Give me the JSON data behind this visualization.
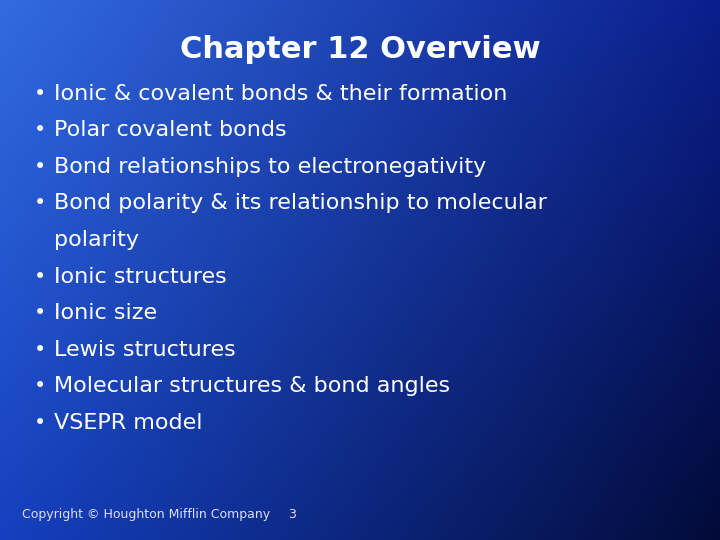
{
  "title": "Chapter 12 Overview",
  "title_color": "#FFFFFF",
  "title_fontsize": 22,
  "bullet_items": [
    "Ionic & covalent bonds & their formation",
    "Polar covalent bonds",
    "Bond relationships to electronegativity",
    "Bond polarity & its relationship to molecular\npolarity",
    "Ionic structures",
    "Ionic size",
    "Lewis structures",
    "Molecular structures & bond angles",
    "VSEPR model"
  ],
  "bullet_color": "#FFFFFF",
  "bullet_fontsize": 16,
  "bullet_symbol": "•",
  "copyright_text": "Copyright © Houghton Mifflin Company",
  "page_number": "3",
  "footer_fontsize": 9,
  "footer_color": "#DDDDFF",
  "fig_width": 7.2,
  "fig_height": 5.4,
  "dpi": 100
}
